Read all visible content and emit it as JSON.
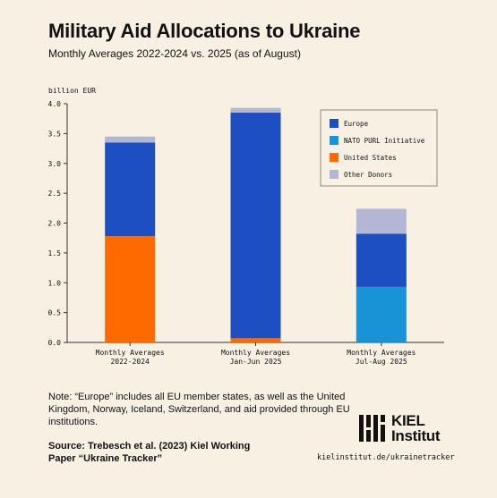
{
  "header": {
    "title": "Military Aid Allocations to Ukraine",
    "subtitle": "Monthly Averages 2022-2024 vs. 2025 (as of August)"
  },
  "chart_data": {
    "type": "bar",
    "stacked": true,
    "ylabel": "billion EUR",
    "ylim": [
      0,
      4.0
    ],
    "yticks": [
      "0.0",
      "0.5",
      "1.0",
      "1.5",
      "2.0",
      "2.5",
      "3.0",
      "3.5",
      "4.0"
    ],
    "categories": [
      [
        "Monthly Averages",
        "2022-2024"
      ],
      [
        "Monthly Averages",
        "Jan-Jun 2025"
      ],
      [
        "Monthly Averages",
        "Jul-Aug 2025"
      ]
    ],
    "series": [
      {
        "name": "United States",
        "color": "#ff6a00",
        "values": [
          1.78,
          0.07,
          0.0
        ]
      },
      {
        "name": "NATO PURL Initiative",
        "color": "#1793d6",
        "values": [
          0.0,
          0.0,
          0.93
        ]
      },
      {
        "name": "Europe",
        "color": "#1e4fc2",
        "values": [
          1.57,
          3.78,
          0.89
        ]
      },
      {
        "name": "Other Donors",
        "color": "#b3b6d4",
        "values": [
          0.1,
          0.08,
          0.42
        ]
      }
    ],
    "legend": {
      "position": "top-right",
      "order": [
        "Europe",
        "NATO PURL Initiative",
        "United States",
        "Other Donors"
      ]
    },
    "grid": false
  },
  "footer": {
    "note": "Note: “Europe” includes all EU member states, as well as the United Kingdom, Norway, Iceland, Switzerland, and aid provided through EU institutions.",
    "source": "Source: Trebesch et al. (2023) Kiel Working Paper “Ukraine Tracker”",
    "logo_line1": "KIEL",
    "logo_line2": "Institut",
    "url": "kielinstitut.de/ukrainetracker"
  }
}
